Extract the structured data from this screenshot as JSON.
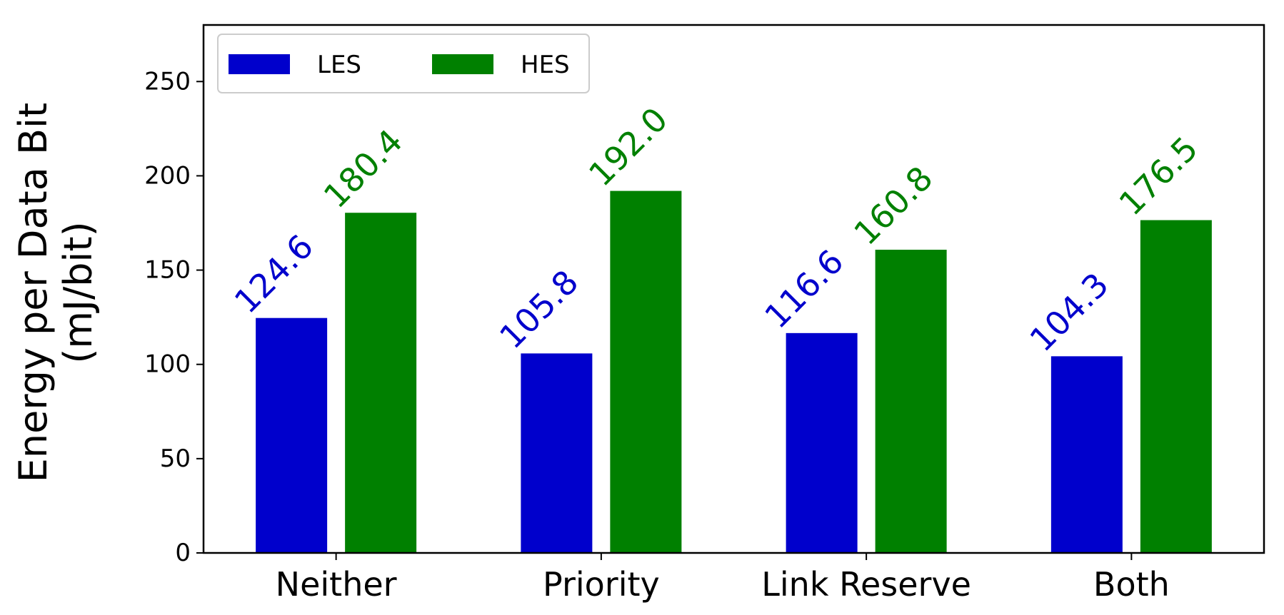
{
  "chart_data": {
    "type": "bar",
    "categories": [
      "Neither",
      "Priority",
      "Link Reserve",
      "Both"
    ],
    "series": [
      {
        "name": "LES",
        "color": "#0000cc",
        "values": [
          124.6,
          105.8,
          116.6,
          104.3
        ],
        "labels": [
          "124.6",
          "105.8",
          "116.6",
          "104.3"
        ]
      },
      {
        "name": "HES",
        "color": "#008000",
        "values": [
          180.4,
          192.0,
          160.8,
          176.5
        ],
        "labels": [
          "180.4",
          "192.0",
          "160.8",
          "176.5"
        ]
      }
    ],
    "ylabel_line1": "Energy per Data Bit",
    "ylabel_line2": "(mJ/bit)",
    "xlabel": "",
    "ylim": [
      0,
      280
    ],
    "yticks": [
      0,
      50,
      100,
      150,
      200,
      250
    ],
    "ytick_labels": [
      "0",
      "50",
      "100",
      "150",
      "200",
      "250"
    ],
    "legend": {
      "position": "top-left",
      "entries": [
        "LES",
        "HES"
      ]
    },
    "grid": false
  }
}
